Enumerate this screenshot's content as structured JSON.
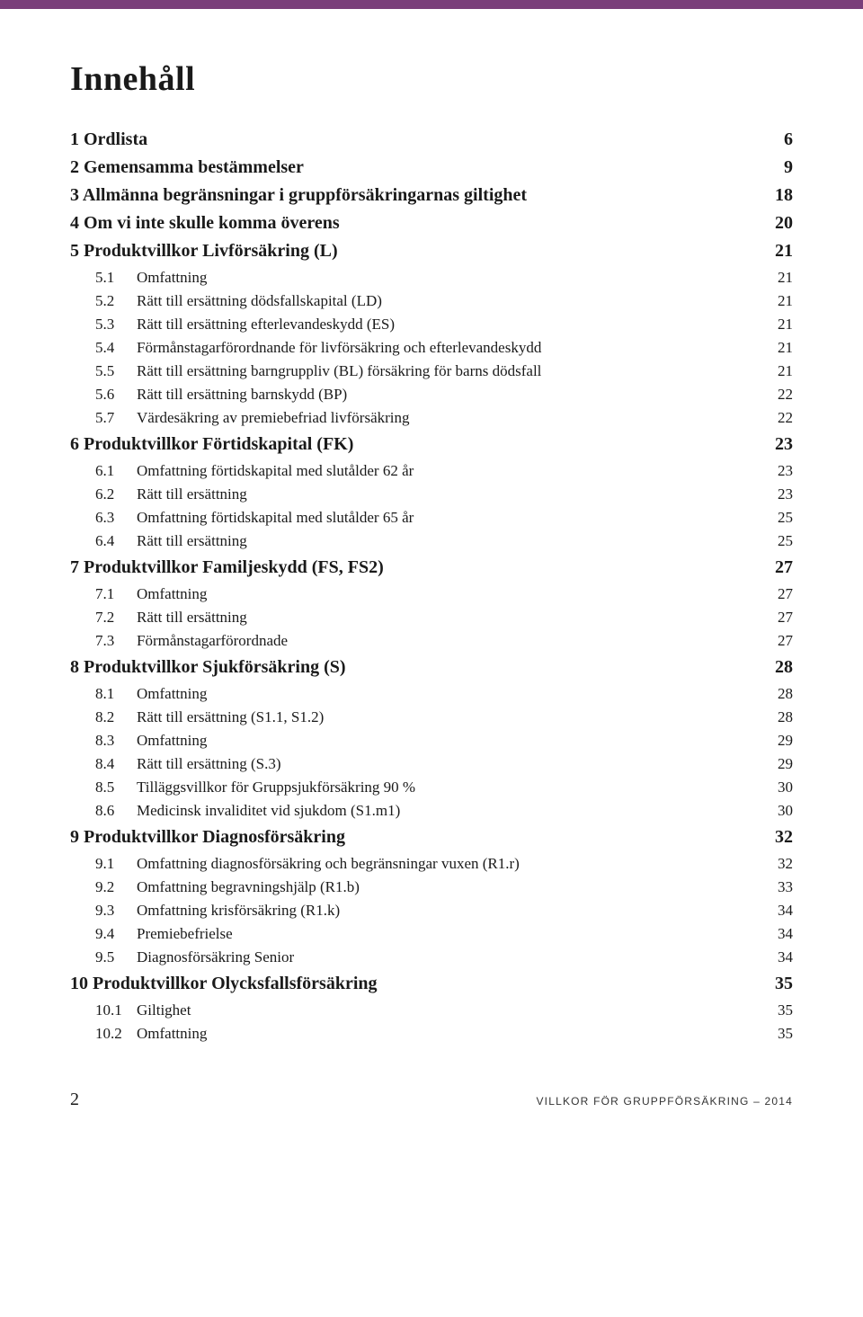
{
  "title": "Innehåll",
  "topbar_color": "#7a3e7a",
  "toc": [
    {
      "level": 1,
      "num": "1",
      "label": "Ordlista",
      "page": "6"
    },
    {
      "level": 1,
      "num": "2",
      "label": "Gemensamma bestämmelser",
      "page": "9"
    },
    {
      "level": 1,
      "num": "3",
      "label": "Allmänna begränsningar i gruppförsäkringarnas giltighet",
      "page": "18"
    },
    {
      "level": 1,
      "num": "4",
      "label": "Om vi inte skulle komma överens",
      "page": "20"
    },
    {
      "level": 1,
      "num": "5",
      "label": "Produktvillkor Livförsäkring (L)",
      "page": "21"
    },
    {
      "level": 2,
      "num": "5.1",
      "label": "Omfattning",
      "page": "21"
    },
    {
      "level": 2,
      "num": "5.2",
      "label": "Rätt till ersättning dödsfallskapital (LD)",
      "page": "21"
    },
    {
      "level": 2,
      "num": "5.3",
      "label": "Rätt till ersättning efterlevandeskydd (ES)",
      "page": "21"
    },
    {
      "level": 2,
      "num": "5.4",
      "label": "Förmånstagarförordnande för livförsäkring och efterlevandeskydd",
      "page": "21"
    },
    {
      "level": 2,
      "num": "5.5",
      "label": "Rätt till ersättning barngruppliv (BL) försäkring för barns dödsfall",
      "page": "21"
    },
    {
      "level": 2,
      "num": "5.6",
      "label": "Rätt till ersättning barnskydd (BP)",
      "page": "22"
    },
    {
      "level": 2,
      "num": "5.7",
      "label": "Värdesäkring av premiebefriad livförsäkring",
      "page": "22"
    },
    {
      "level": 1,
      "num": "6",
      "label": "Produktvillkor Förtidskapital (FK)",
      "page": "23"
    },
    {
      "level": 2,
      "num": "6.1",
      "label": "Omfattning förtidskapital med slutålder 62 år",
      "page": "23"
    },
    {
      "level": 2,
      "num": "6.2",
      "label": "Rätt till ersättning",
      "page": "23"
    },
    {
      "level": 2,
      "num": "6.3",
      "label": "Omfattning förtidskapital med slutålder 65 år",
      "page": "25"
    },
    {
      "level": 2,
      "num": "6.4",
      "label": "Rätt till ersättning",
      "page": "25"
    },
    {
      "level": 1,
      "num": "7",
      "label": "Produktvillkor Familjeskydd (FS, FS2)",
      "page": "27"
    },
    {
      "level": 2,
      "num": "7.1",
      "label": "Omfattning",
      "page": "27"
    },
    {
      "level": 2,
      "num": "7.2",
      "label": "Rätt till ersättning",
      "page": "27"
    },
    {
      "level": 2,
      "num": "7.3",
      "label": "Förmånstagarförordnade",
      "page": "27"
    },
    {
      "level": 1,
      "num": "8",
      "label": "Produktvillkor Sjukförsäkring (S)",
      "page": "28"
    },
    {
      "level": 2,
      "num": "8.1",
      "label": "Omfattning",
      "page": "28"
    },
    {
      "level": 2,
      "num": "8.2",
      "label": "Rätt till ersättning (S1.1, S1.2)",
      "page": "28"
    },
    {
      "level": 2,
      "num": "8.3",
      "label": "Omfattning",
      "page": "29"
    },
    {
      "level": 2,
      "num": "8.4",
      "label": "Rätt till ersättning (S.3)",
      "page": "29"
    },
    {
      "level": 2,
      "num": "8.5",
      "label": "Tilläggsvillkor för Gruppsjukförsäkring 90 %",
      "page": "30"
    },
    {
      "level": 2,
      "num": "8.6",
      "label": "Medicinsk invaliditet vid sjukdom (S1.m1)",
      "page": "30"
    },
    {
      "level": 1,
      "num": "9",
      "label": "Produktvillkor Diagnosförsäkring",
      "page": "32"
    },
    {
      "level": 2,
      "num": "9.1",
      "label": "Omfattning diagnosförsäkring och begränsningar vuxen (R1.r)",
      "page": "32"
    },
    {
      "level": 2,
      "num": "9.2",
      "label": "Omfattning begravningshjälp (R1.b)",
      "page": "33"
    },
    {
      "level": 2,
      "num": "9.3",
      "label": "Omfattning krisförsäkring (R1.k)",
      "page": "34"
    },
    {
      "level": 2,
      "num": "9.4",
      "label": "Premiebefrielse",
      "page": "34"
    },
    {
      "level": 2,
      "num": "9.5",
      "label": "Diagnosförsäkring Senior",
      "page": "34"
    },
    {
      "level": 1,
      "num": "10",
      "label": "Produktvillkor Olycksfallsförsäkring",
      "page": "35"
    },
    {
      "level": 2,
      "num": "10.1",
      "label": "Giltighet",
      "page": "35"
    },
    {
      "level": 2,
      "num": "10.2",
      "label": "Omfattning",
      "page": "35"
    }
  ],
  "footer": {
    "page_number": "2",
    "text": "VILLKOR FÖR GRUPPFÖRSÄKRING – 2014"
  }
}
